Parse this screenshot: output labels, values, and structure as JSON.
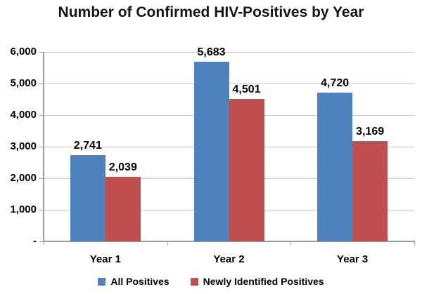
{
  "chart_data": {
    "type": "bar",
    "title": "Number of Confirmed HIV-Positives by Year",
    "categories": [
      "Year 1",
      "Year 2",
      "Year 3"
    ],
    "series": [
      {
        "name": "All Positives",
        "color": "#4F81BD",
        "values": [
          2741,
          5683,
          4720
        ],
        "labels": [
          "2,741",
          "5,683",
          "4,720"
        ]
      },
      {
        "name": "Newly Identified Positives",
        "color": "#C0504D",
        "values": [
          2039,
          4501,
          3169
        ],
        "labels": [
          "2,039",
          "4,501",
          "3,169"
        ]
      }
    ],
    "ylim": [
      0,
      6000
    ],
    "ytick_step": 1000,
    "ytick_labels": [
      "-",
      "1,000",
      "2,000",
      "3,000",
      "4,000",
      "5,000",
      "6,000"
    ],
    "grid": true,
    "legend_position": "bottom"
  }
}
